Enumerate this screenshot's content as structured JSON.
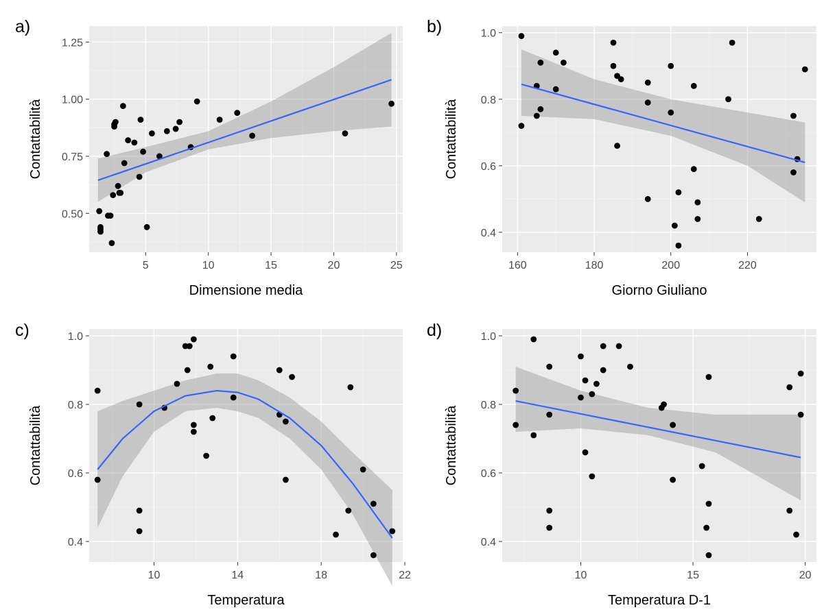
{
  "chart_data": [
    {
      "panel_label": "a)",
      "type": "scatter",
      "xlabel": "Dimensione media",
      "ylabel": "Contattabilità",
      "xlim": [
        0.5,
        25.5
      ],
      "ylim": [
        0.33,
        1.32
      ],
      "x_ticks": [
        5,
        10,
        15,
        20,
        25
      ],
      "y_ticks": [
        0.5,
        0.75,
        1.0,
        1.25
      ],
      "y_tick_labels": [
        "0.50",
        "0.75",
        "1.00",
        "1.25"
      ],
      "grid": true,
      "fit": "linear",
      "fit_line": {
        "x": [
          1.2,
          24.6
        ],
        "y": [
          0.645,
          1.085
        ]
      },
      "band": {
        "x": [
          1.2,
          5,
          10,
          15,
          20,
          24.6
        ],
        "upper": [
          0.74,
          0.79,
          0.86,
          0.99,
          1.14,
          1.29
        ],
        "lower": [
          0.55,
          0.68,
          0.78,
          0.83,
          0.86,
          0.88
        ]
      },
      "points": [
        [
          1.3,
          0.51
        ],
        [
          1.4,
          0.44
        ],
        [
          1.4,
          0.43
        ],
        [
          1.4,
          0.42
        ],
        [
          1.9,
          0.76
        ],
        [
          2.0,
          0.49
        ],
        [
          2.2,
          0.49
        ],
        [
          2.3,
          0.37
        ],
        [
          2.4,
          0.58
        ],
        [
          2.5,
          0.89
        ],
        [
          2.5,
          0.88
        ],
        [
          2.6,
          0.9
        ],
        [
          2.8,
          0.62
        ],
        [
          2.9,
          0.59
        ],
        [
          3.0,
          0.59
        ],
        [
          3.2,
          0.97
        ],
        [
          3.3,
          0.72
        ],
        [
          3.6,
          0.82
        ],
        [
          4.1,
          0.81
        ],
        [
          4.5,
          0.66
        ],
        [
          4.6,
          0.91
        ],
        [
          4.8,
          0.77
        ],
        [
          5.1,
          0.44
        ],
        [
          5.5,
          0.85
        ],
        [
          6.1,
          0.75
        ],
        [
          6.7,
          0.86
        ],
        [
          7.4,
          0.87
        ],
        [
          7.7,
          0.9
        ],
        [
          8.6,
          0.79
        ],
        [
          9.1,
          0.99
        ],
        [
          10.9,
          0.91
        ],
        [
          12.3,
          0.94
        ],
        [
          13.5,
          0.84
        ],
        [
          20.9,
          0.85
        ],
        [
          24.6,
          0.98
        ]
      ]
    },
    {
      "panel_label": "b)",
      "type": "scatter",
      "xlabel": "Giorno Giuliano",
      "ylabel": "Contattabilità",
      "xlim": [
        156,
        238
      ],
      "ylim": [
        0.34,
        1.02
      ],
      "x_ticks": [
        160,
        180,
        200,
        220
      ],
      "y_ticks": [
        0.4,
        0.6,
        0.8,
        1.0
      ],
      "y_tick_labels": [
        "0.4",
        "0.6",
        "0.8",
        "1.0"
      ],
      "grid": true,
      "fit": "linear",
      "fit_line": {
        "x": [
          161,
          235
        ],
        "y": [
          0.845,
          0.61
        ]
      },
      "band": {
        "x": [
          161,
          180,
          200,
          220,
          235
        ],
        "upper": [
          0.95,
          0.86,
          0.8,
          0.76,
          0.73
        ],
        "lower": [
          0.75,
          0.74,
          0.69,
          0.6,
          0.49
        ]
      },
      "points": [
        [
          161,
          0.99
        ],
        [
          161,
          0.72
        ],
        [
          165,
          0.75
        ],
        [
          165,
          0.84
        ],
        [
          166,
          0.91
        ],
        [
          166,
          0.77
        ],
        [
          170,
          0.94
        ],
        [
          170,
          0.83
        ],
        [
          172,
          0.91
        ],
        [
          185,
          0.97
        ],
        [
          185,
          0.9
        ],
        [
          186,
          0.87
        ],
        [
          186,
          0.66
        ],
        [
          187,
          0.86
        ],
        [
          194,
          0.85
        ],
        [
          194,
          0.79
        ],
        [
          194,
          0.5
        ],
        [
          200,
          0.9
        ],
        [
          200,
          0.76
        ],
        [
          201,
          0.42
        ],
        [
          202,
          0.36
        ],
        [
          202,
          0.52
        ],
        [
          206,
          0.84
        ],
        [
          206,
          0.59
        ],
        [
          207,
          0.49
        ],
        [
          207,
          0.44
        ],
        [
          215,
          0.8
        ],
        [
          216,
          0.97
        ],
        [
          223,
          0.44
        ],
        [
          232,
          0.75
        ],
        [
          232,
          0.58
        ],
        [
          233,
          0.62
        ],
        [
          235,
          0.89
        ]
      ]
    },
    {
      "panel_label": "c)",
      "type": "scatter",
      "xlabel": "Temperatura",
      "ylabel": "Contattabilità",
      "xlim": [
        6.9,
        21.9
      ],
      "ylim": [
        0.34,
        1.02
      ],
      "x_ticks": [
        10,
        14,
        18,
        22
      ],
      "y_ticks": [
        0.4,
        0.6,
        0.8,
        1.0
      ],
      "y_tick_labels": [
        "0.4",
        "0.6",
        "0.8",
        "1.0"
      ],
      "grid": true,
      "fit": "quadratic",
      "fit_line": {
        "x": [
          7.3,
          8.5,
          10,
          11.5,
          13,
          14,
          15,
          16.5,
          18,
          19.5,
          21.4
        ],
        "y": [
          0.61,
          0.7,
          0.78,
          0.825,
          0.84,
          0.835,
          0.815,
          0.76,
          0.68,
          0.57,
          0.41
        ]
      },
      "band": {
        "x": [
          7.3,
          8.5,
          10,
          11.5,
          13,
          14,
          15,
          16.5,
          18,
          19.5,
          21.4
        ],
        "upper": [
          0.78,
          0.81,
          0.84,
          0.87,
          0.89,
          0.89,
          0.87,
          0.82,
          0.75,
          0.66,
          0.55
        ],
        "lower": [
          0.44,
          0.59,
          0.72,
          0.78,
          0.79,
          0.78,
          0.76,
          0.7,
          0.61,
          0.48,
          0.27
        ]
      },
      "points": [
        [
          7.3,
          0.84
        ],
        [
          7.3,
          0.58
        ],
        [
          9.3,
          0.8
        ],
        [
          9.3,
          0.49
        ],
        [
          9.3,
          0.43
        ],
        [
          10.5,
          0.79
        ],
        [
          11.1,
          0.86
        ],
        [
          11.5,
          0.97
        ],
        [
          11.6,
          0.9
        ],
        [
          11.7,
          0.97
        ],
        [
          11.9,
          0.99
        ],
        [
          11.9,
          0.74
        ],
        [
          11.9,
          0.72
        ],
        [
          12.5,
          0.65
        ],
        [
          12.7,
          0.91
        ],
        [
          12.8,
          0.76
        ],
        [
          13.8,
          0.94
        ],
        [
          13.8,
          0.82
        ],
        [
          16.0,
          0.9
        ],
        [
          16.0,
          0.77
        ],
        [
          16.3,
          0.75
        ],
        [
          16.3,
          0.58
        ],
        [
          16.6,
          0.88
        ],
        [
          18.7,
          0.42
        ],
        [
          19.3,
          0.49
        ],
        [
          19.4,
          0.85
        ],
        [
          20.0,
          0.61
        ],
        [
          20.5,
          0.51
        ],
        [
          20.5,
          0.36
        ],
        [
          21.4,
          0.43
        ]
      ]
    },
    {
      "panel_label": "d)",
      "type": "scatter",
      "xlabel": "Temperatura D-1",
      "ylabel": "Contattabilità",
      "xlim": [
        6.5,
        20.5
      ],
      "ylim": [
        0.34,
        1.02
      ],
      "x_ticks": [
        10,
        15,
        20
      ],
      "y_ticks": [
        0.4,
        0.6,
        0.8,
        1.0
      ],
      "y_tick_labels": [
        "0.4",
        "0.6",
        "0.8",
        "1.0"
      ],
      "grid": true,
      "fit": "linear",
      "fit_line": {
        "x": [
          7.1,
          19.8
        ],
        "y": [
          0.81,
          0.645
        ]
      },
      "band": {
        "x": [
          7.1,
          10,
          13,
          16,
          19.8
        ],
        "upper": [
          0.91,
          0.84,
          0.79,
          0.77,
          0.77
        ],
        "lower": [
          0.72,
          0.73,
          0.71,
          0.66,
          0.52
        ]
      },
      "points": [
        [
          7.1,
          0.84
        ],
        [
          7.1,
          0.74
        ],
        [
          7.9,
          0.99
        ],
        [
          7.9,
          0.71
        ],
        [
          8.6,
          0.91
        ],
        [
          8.6,
          0.77
        ],
        [
          8.6,
          0.49
        ],
        [
          8.6,
          0.44
        ],
        [
          10.0,
          0.94
        ],
        [
          10.0,
          0.82
        ],
        [
          10.2,
          0.87
        ],
        [
          10.2,
          0.66
        ],
        [
          10.5,
          0.83
        ],
        [
          10.5,
          0.59
        ],
        [
          10.7,
          0.86
        ],
        [
          11.0,
          0.97
        ],
        [
          11.0,
          0.9
        ],
        [
          11.7,
          0.97
        ],
        [
          12.2,
          0.91
        ],
        [
          13.6,
          0.79
        ],
        [
          13.7,
          0.8
        ],
        [
          14.1,
          0.74
        ],
        [
          14.1,
          0.58
        ],
        [
          15.4,
          0.62
        ],
        [
          15.6,
          0.44
        ],
        [
          15.7,
          0.36
        ],
        [
          15.7,
          0.51
        ],
        [
          15.7,
          0.88
        ],
        [
          19.3,
          0.85
        ],
        [
          19.3,
          0.49
        ],
        [
          19.6,
          0.42
        ],
        [
          19.8,
          0.89
        ],
        [
          19.8,
          0.77
        ]
      ]
    }
  ],
  "colors": {
    "panel_bg": "#ebebeb",
    "grid_major": "#ffffff",
    "grid_minor": "#f4f4f4",
    "fit_line": "#3366ff",
    "band": "#999999",
    "point": "#000000",
    "tick_text": "#4d4d4d",
    "tick_mark": "#333333"
  }
}
